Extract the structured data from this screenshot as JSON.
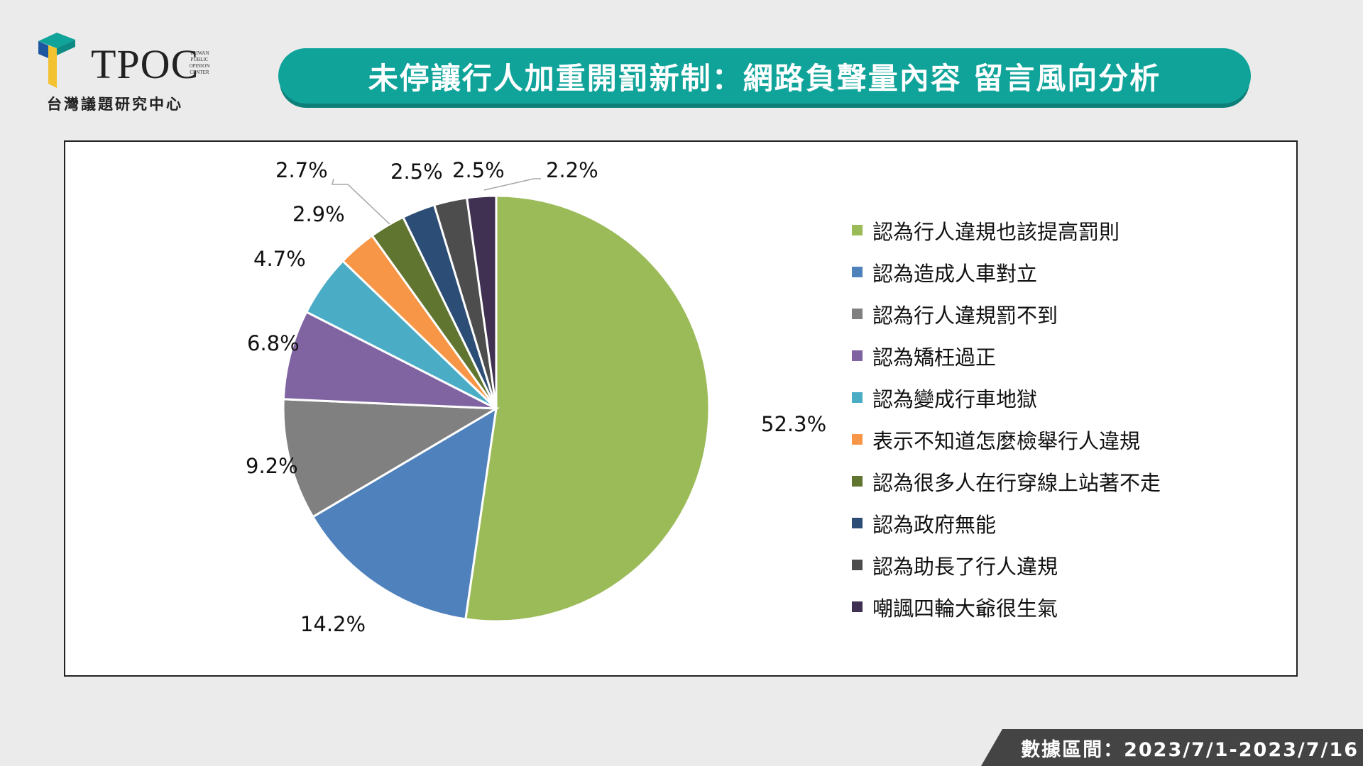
{
  "logo": {
    "name": "TPOC",
    "small_lines": [
      "TAIWAN",
      "PUBLIC",
      "OPINION",
      "CENTER"
    ],
    "subtitle": "台灣議題研究中心"
  },
  "title": "未停讓行人加重開罰新制：網路負聲量內容  留言風向分析",
  "footer": "數據區間：2023/7/1-2023/7/16",
  "chart_data": {
    "type": "pie",
    "title": "",
    "slices": [
      {
        "name": "認為行人違規也該提高罰則",
        "value": 52.3,
        "label": "52.3%",
        "color": "#9bbb59"
      },
      {
        "name": "認為造成人車對立",
        "value": 14.2,
        "label": "14.2%",
        "color": "#4f81bd"
      },
      {
        "name": "認為行人違規罰不到",
        "value": 9.2,
        "label": "9.2%",
        "color": "#808080"
      },
      {
        "name": "認為矯枉過正",
        "value": 6.8,
        "label": "6.8%",
        "color": "#8064a2"
      },
      {
        "name": "認為變成行車地獄",
        "value": 4.7,
        "label": "4.7%",
        "color": "#4bacc6"
      },
      {
        "name": "表示不知道怎麼檢舉行人違規",
        "value": 2.9,
        "label": "2.9%",
        "color": "#f79646"
      },
      {
        "name": "認為很多人在行穿線上站著不走",
        "value": 2.7,
        "label": "2.7%",
        "color": "#5f7530"
      },
      {
        "name": "認為政府無能",
        "value": 2.5,
        "label": "2.5%",
        "color": "#2c4d75"
      },
      {
        "name": "認為助長了行人違規",
        "value": 2.5,
        "label": "2.5%",
        "color": "#4d4d4d"
      },
      {
        "name": "嘲諷四輪大爺很生氣",
        "value": 2.2,
        "label": "2.2%",
        "color": "#403152"
      }
    ],
    "legend_position": "right"
  }
}
